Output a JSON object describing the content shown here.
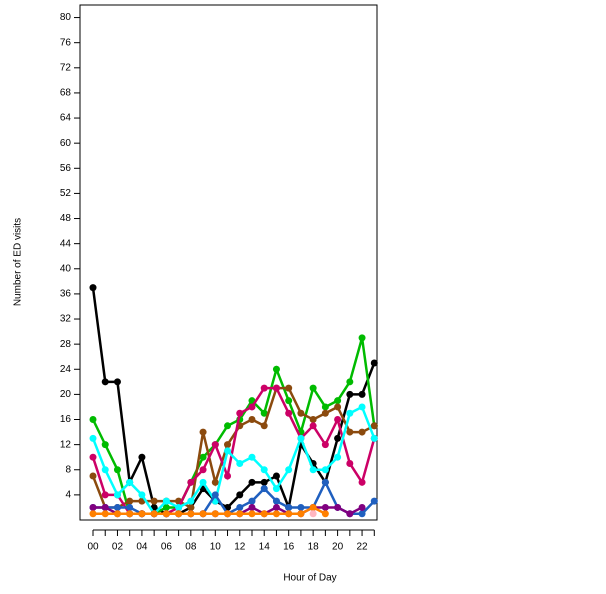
{
  "chart_data": {
    "type": "line",
    "x_label": "Hour of Day",
    "y_label": "Number of ED visits",
    "categories": [
      "00",
      null,
      "02",
      null,
      "04",
      null,
      "06",
      null,
      "08",
      null,
      "10",
      null,
      "12",
      null,
      "14",
      null,
      "16",
      null,
      "18",
      null,
      "20",
      null,
      "22",
      null
    ],
    "ylim": [
      0,
      82
    ],
    "yticks": [
      4,
      8,
      12,
      16,
      20,
      24,
      28,
      32,
      36,
      40,
      44,
      48,
      52,
      56,
      60,
      64,
      68,
      72,
      76,
      80
    ],
    "grid": false,
    "series": [
      {
        "color": "#000000",
        "values": [
          37,
          22,
          22,
          6,
          10,
          2,
          1,
          1,
          2,
          5,
          3,
          2,
          4,
          6,
          6,
          7,
          2,
          12,
          9,
          6,
          13,
          20,
          20,
          25
        ]
      },
      {
        "color": "#00bb00",
        "values": [
          16,
          12,
          8,
          1,
          1,
          1,
          2,
          2,
          6,
          10,
          12,
          15,
          16,
          19,
          17,
          24,
          19,
          14,
          21,
          18,
          19,
          22,
          29,
          15
        ]
      },
      {
        "color": "#8b4a0e",
        "values": [
          7,
          2,
          2,
          3,
          3,
          3,
          3,
          3,
          2,
          14,
          6,
          12,
          15,
          16,
          15,
          21,
          21,
          17,
          16,
          17,
          18,
          14,
          14,
          15
        ]
      },
      {
        "color": "#cc0066",
        "values": [
          10,
          4,
          4,
          1,
          1,
          1,
          1,
          2,
          6,
          8,
          12,
          7,
          17,
          18,
          21,
          21,
          17,
          13,
          15,
          12,
          16,
          9,
          6,
          13
        ]
      },
      {
        "color": "#00ffff",
        "values": [
          13,
          8,
          4,
          6,
          4,
          1,
          3,
          2,
          3,
          6,
          3,
          11,
          9,
          10,
          8,
          5,
          8,
          13,
          8,
          8,
          10,
          17,
          18,
          13
        ]
      },
      {
        "color": "#1f5fbf",
        "values": [
          2,
          2,
          2,
          2,
          1,
          1,
          1,
          1,
          1,
          1,
          4,
          1,
          2,
          3,
          5,
          3,
          2,
          2,
          2,
          6,
          2,
          1,
          1,
          3
        ]
      },
      {
        "color": "#800080",
        "values": [
          2,
          2,
          1,
          1,
          1,
          1,
          1,
          1,
          1,
          1,
          1,
          1,
          1,
          2,
          1,
          2,
          1,
          1,
          2,
          2,
          2,
          1,
          2,
          null
        ]
      },
      {
        "color": "#ff8000",
        "values": [
          1,
          1,
          1,
          1,
          1,
          1,
          1,
          1,
          1,
          1,
          1,
          1,
          1,
          1,
          1,
          1,
          1,
          1,
          2,
          1,
          null,
          null,
          null,
          null
        ]
      },
      {
        "color": "#ffb6c1",
        "values": [
          null,
          null,
          null,
          null,
          null,
          null,
          null,
          null,
          null,
          null,
          null,
          null,
          null,
          null,
          null,
          null,
          null,
          null,
          1,
          null,
          null,
          null,
          null,
          null
        ]
      }
    ]
  }
}
